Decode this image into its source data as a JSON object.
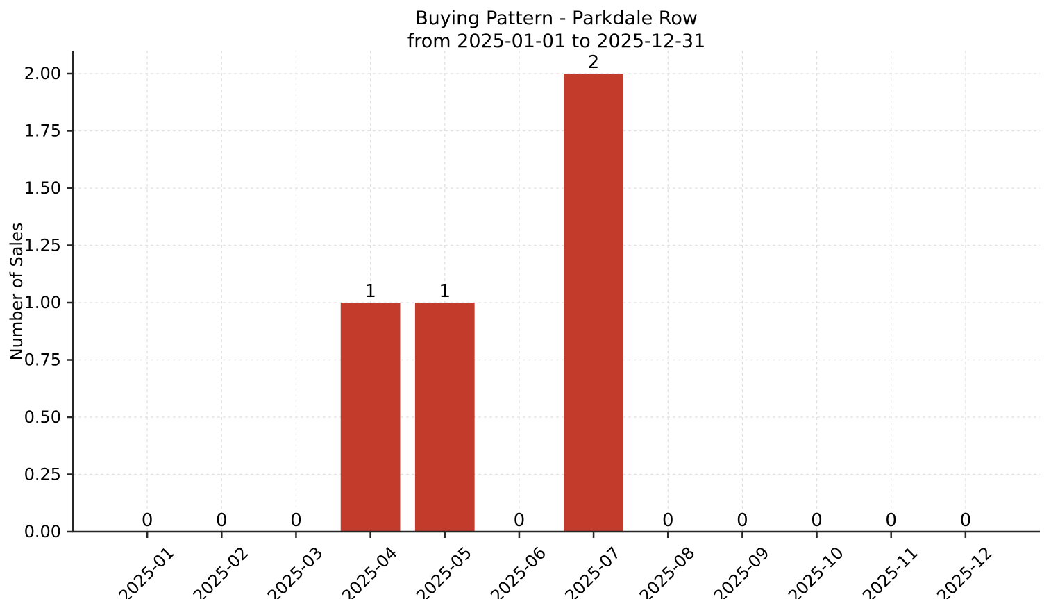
{
  "chart_data": {
    "type": "bar",
    "title": "Buying Pattern - Parkdale Row",
    "subtitle": "from 2025-01-01 to 2025-12-31",
    "xlabel": "",
    "ylabel": "Number of Sales",
    "categories": [
      "2025-01",
      "2025-02",
      "2025-03",
      "2025-04",
      "2025-05",
      "2025-06",
      "2025-07",
      "2025-08",
      "2025-09",
      "2025-10",
      "2025-11",
      "2025-12"
    ],
    "values": [
      0,
      0,
      0,
      1,
      1,
      0,
      2,
      0,
      0,
      0,
      0,
      0
    ],
    "bar_value_labels": [
      "0",
      "0",
      "0",
      "1",
      "1",
      "0",
      "2",
      "0",
      "0",
      "0",
      "0",
      "0"
    ],
    "ytick_labels": [
      "0.00",
      "0.25",
      "0.50",
      "0.75",
      "1.00",
      "1.25",
      "1.50",
      "1.75",
      "2.00"
    ],
    "yticks": [
      0,
      0.25,
      0.5,
      0.75,
      1.0,
      1.25,
      1.5,
      1.75,
      2.0
    ],
    "ylim": [
      0,
      2.1
    ],
    "x_tick_rotation_deg": 45,
    "grid": true,
    "grid_style": "dashed",
    "legend": "none",
    "colors": {
      "bar": "#c23b2b",
      "grid": "#e0e0e0",
      "spine": "#262626",
      "text": "#000000",
      "background": "#ffffff"
    }
  }
}
